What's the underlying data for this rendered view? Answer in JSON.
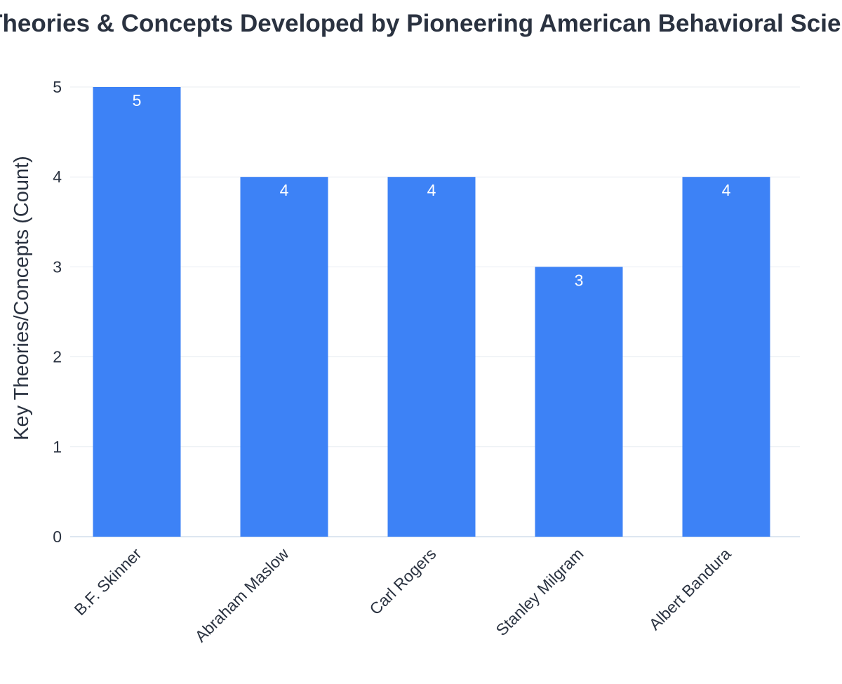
{
  "chart_data": {
    "type": "bar",
    "title": "Key Theories & Concepts Developed by Pioneering American Behavioral Scientists",
    "xlabel": "",
    "ylabel": "Key Theories/Concepts (Count)",
    "categories": [
      "B.F. Skinner",
      "Abraham Maslow",
      "Carl Rogers",
      "Stanley Milgram",
      "Albert Bandura"
    ],
    "values": [
      5,
      4,
      4,
      3,
      4
    ],
    "ylim": [
      0,
      5
    ],
    "yticks": [
      0,
      1,
      2,
      3,
      4,
      5
    ],
    "grid": true,
    "legend": "none",
    "bar_color": "#3d82f6",
    "data_labels": "inside-end"
  }
}
